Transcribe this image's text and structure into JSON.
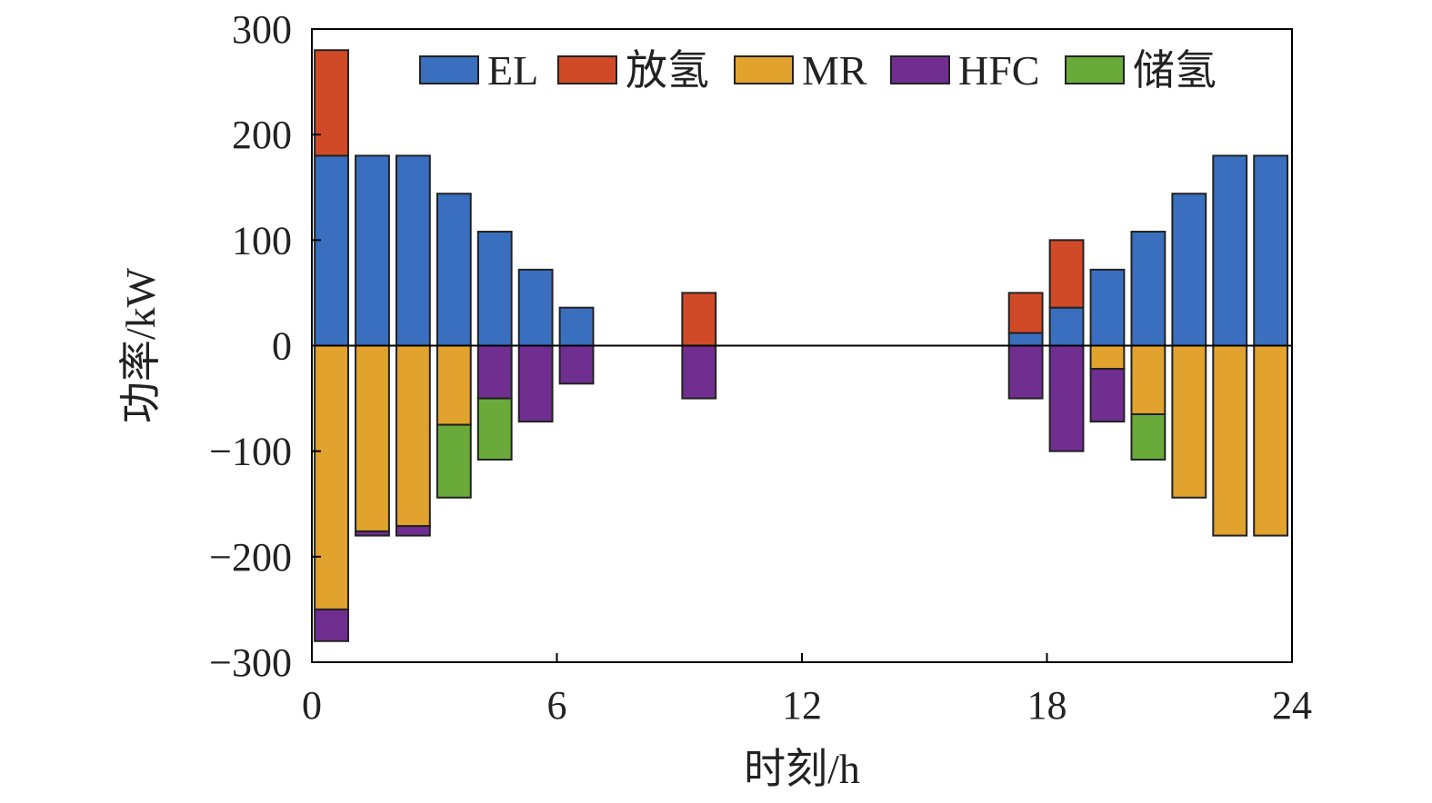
{
  "chart_data": {
    "type": "bar",
    "stacked": true,
    "xlabel": "时刻/h",
    "ylabel": "功率/kW",
    "xlim": [
      0,
      24
    ],
    "ylim": [
      -300,
      300
    ],
    "x_ticks": [
      0,
      6,
      12,
      18,
      24
    ],
    "y_ticks": [
      300,
      200,
      100,
      0,
      -100,
      -200,
      -300
    ],
    "y_tick_labels": [
      "300",
      "200",
      "100",
      "0",
      "−100",
      "−200",
      "−300"
    ],
    "x": [
      1,
      2,
      3,
      4,
      5,
      6,
      7,
      8,
      9,
      10,
      11,
      12,
      13,
      14,
      15,
      16,
      17,
      18,
      19,
      20,
      21,
      22,
      23,
      24
    ],
    "grid": false,
    "legend_position": "top",
    "series": [
      {
        "name": "EL",
        "color": "#3a6fbf",
        "values": [
          180,
          180,
          180,
          144,
          108,
          72,
          36,
          0,
          0,
          0,
          0,
          0,
          0,
          0,
          0,
          0,
          0,
          12,
          36,
          72,
          108,
          144,
          180,
          180
        ]
      },
      {
        "name": "放氢",
        "color": "#d14a28",
        "values": [
          100,
          0,
          0,
          0,
          0,
          0,
          0,
          0,
          0,
          50,
          0,
          0,
          0,
          0,
          0,
          0,
          0,
          38,
          64,
          0,
          0,
          0,
          0,
          0
        ]
      },
      {
        "name": "MR",
        "color": "#e1a22e",
        "values": [
          -250,
          -176,
          -171,
          -75,
          0,
          0,
          0,
          0,
          0,
          0,
          0,
          0,
          0,
          0,
          0,
          0,
          0,
          0,
          0,
          -22,
          -65,
          -144,
          -180,
          -180
        ]
      },
      {
        "name": "HFC",
        "color": "#702e91",
        "values": [
          -30,
          -4,
          -9,
          0,
          -50,
          -72,
          -36,
          0,
          0,
          -50,
          0,
          0,
          0,
          0,
          0,
          0,
          0,
          -50,
          -100,
          -50,
          0,
          0,
          0,
          0
        ]
      },
      {
        "name": "储氢",
        "color": "#6aaa3a",
        "values": [
          0,
          0,
          0,
          -69,
          -58,
          0,
          0,
          0,
          0,
          0,
          0,
          0,
          0,
          0,
          0,
          0,
          0,
          0,
          0,
          0,
          -43,
          0,
          0,
          0
        ]
      }
    ]
  }
}
